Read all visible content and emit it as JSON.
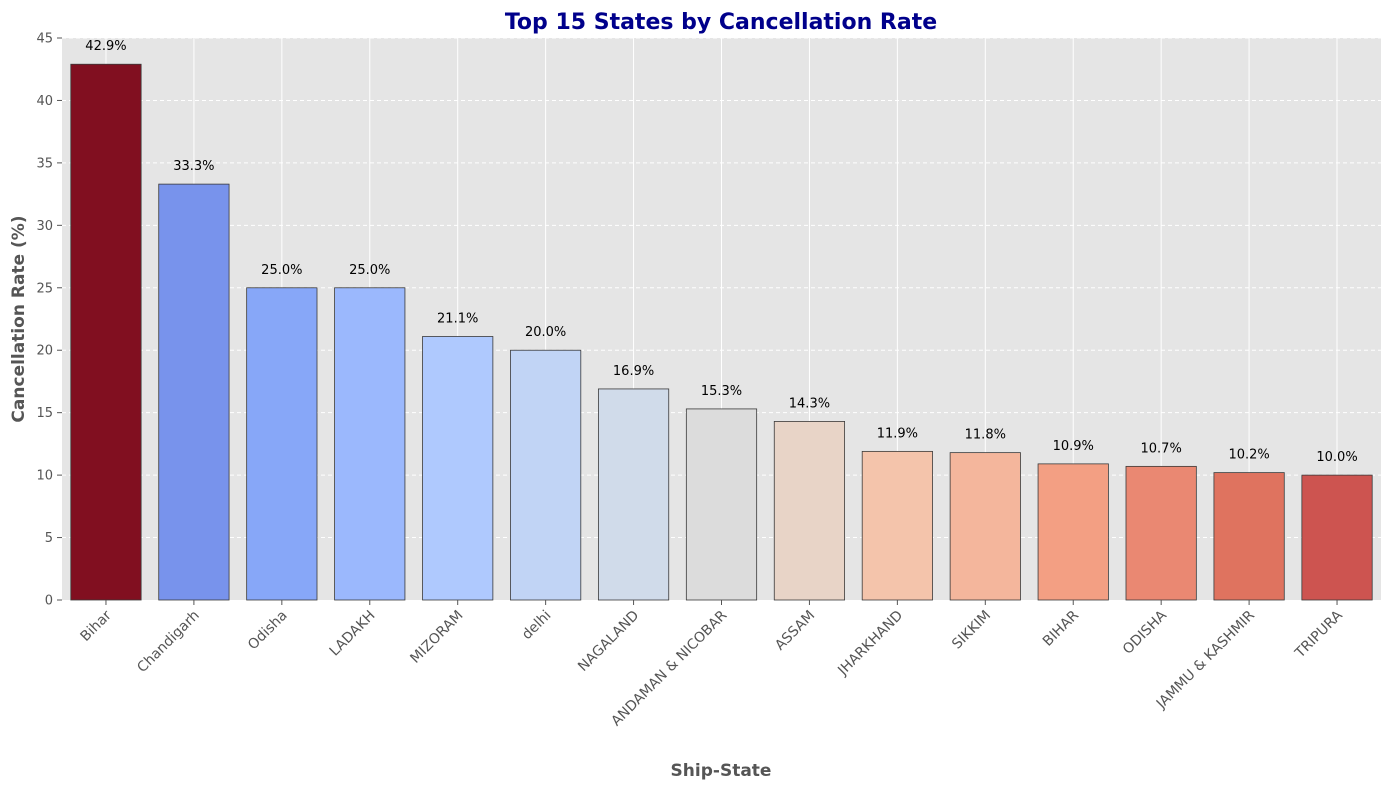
{
  "chart_data": {
    "type": "bar",
    "title": "Top 15 States by Cancellation Rate",
    "xlabel": "Ship-State",
    "ylabel": "Cancellation Rate (%)",
    "ylim": [
      0,
      45
    ],
    "yticks": [
      0,
      5,
      10,
      15,
      20,
      25,
      30,
      35,
      40,
      45
    ],
    "grid": true,
    "categories": [
      "Bihar",
      "Chandigarh",
      "Odisha",
      "LADAKH",
      "MIZORAM",
      "delhi",
      "NAGALAND",
      "ANDAMAN & NICOBAR",
      "ASSAM",
      "JHARKHAND",
      "SIKKIM",
      "BIHAR",
      "ODISHA",
      "JAMMU & KASHMIR",
      "TRIPURA"
    ],
    "values": [
      42.9,
      33.3,
      25.0,
      25.0,
      21.1,
      20.0,
      16.9,
      15.3,
      14.3,
      11.9,
      11.8,
      10.9,
      10.7,
      10.2,
      10.0
    ],
    "labels": [
      "42.9%",
      "33.3%",
      "25.0%",
      "25.0%",
      "21.1%",
      "20.0%",
      "16.9%",
      "15.3%",
      "14.3%",
      "11.9%",
      "11.8%",
      "10.9%",
      "10.7%",
      "10.2%",
      "10.0%"
    ],
    "colors": [
      "#810f20",
      "#7893ec",
      "#87a7f8",
      "#9bb8fd",
      "#afc9fe",
      "#c1d4f5",
      "#d0dbea",
      "#dcdcdc",
      "#e8d4c7",
      "#f4c4ab",
      "#f4b69c",
      "#f39f83",
      "#ea8872",
      "#df735f",
      "#cd5450"
    ],
    "background": "#e5e5e5"
  }
}
